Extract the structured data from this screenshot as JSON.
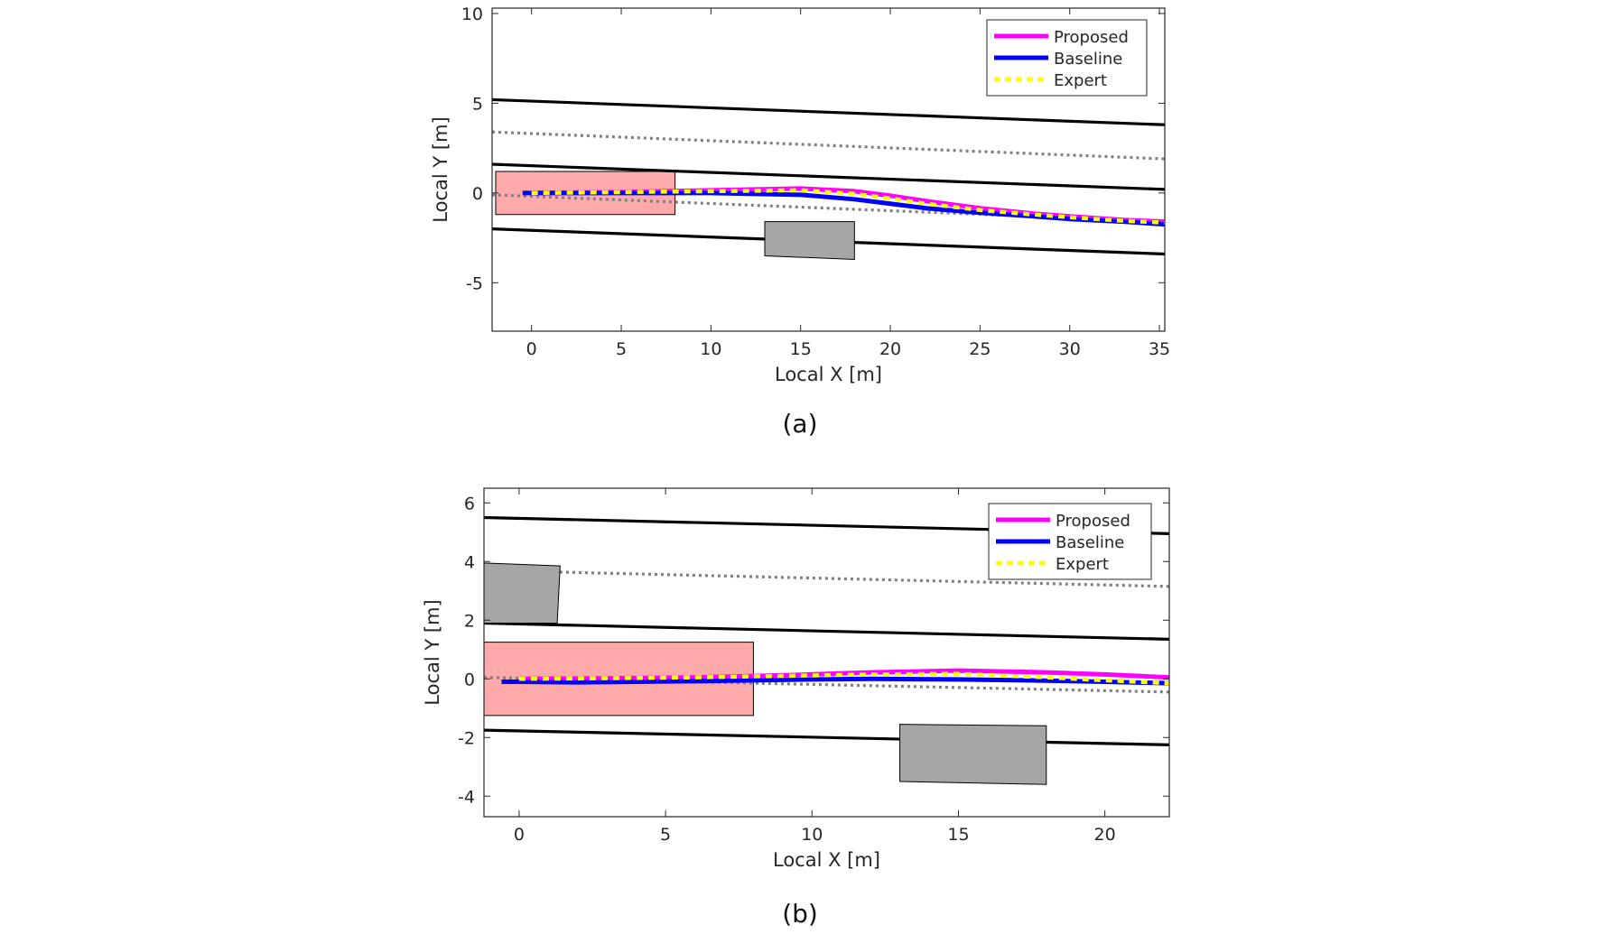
{
  "chart_data": [
    {
      "type": "line",
      "caption": "(a)",
      "xlabel": "Local X [m]",
      "ylabel": "Local Y [m]",
      "xlim": [
        -2.2,
        35.3
      ],
      "ylim": [
        -7.7,
        10.3
      ],
      "xticks": [
        0,
        5,
        10,
        15,
        20,
        25,
        30,
        35
      ],
      "yticks": [
        -5,
        0,
        5,
        10
      ],
      "grid": false,
      "legend_position": "top-right",
      "legend": [
        {
          "label": "Proposed",
          "color": "#ff00ff",
          "style": "solid"
        },
        {
          "label": "Baseline",
          "color": "#0000ff",
          "style": "solid"
        },
        {
          "label": "Expert",
          "color": "#ffff00",
          "style": "dotted"
        }
      ],
      "lane_lines": [
        {
          "kind": "boundary",
          "x": [
            -2.2,
            35.3
          ],
          "y": [
            5.2,
            3.8
          ]
        },
        {
          "kind": "center",
          "x": [
            -2.2,
            35.3
          ],
          "y": [
            3.4,
            1.9
          ]
        },
        {
          "kind": "boundary",
          "x": [
            -2.2,
            35.3
          ],
          "y": [
            1.6,
            0.2
          ]
        },
        {
          "kind": "center",
          "x": [
            -2.2,
            35.3
          ],
          "y": [
            -0.1,
            -1.6
          ]
        },
        {
          "kind": "boundary",
          "x": [
            -2.2,
            35.3
          ],
          "y": [
            -2.0,
            -3.4
          ]
        }
      ],
      "ego_box": {
        "x": [
          -2.0,
          8.0
        ],
        "y": [
          -1.2,
          1.2
        ],
        "color": "#ffaaaa"
      },
      "obstacles": [
        {
          "corners": [
            [
              13.0,
              -1.6
            ],
            [
              18.0,
              -1.6
            ],
            [
              18.0,
              -3.7
            ],
            [
              13.0,
              -3.5
            ]
          ],
          "color": "#a6a6a6"
        }
      ],
      "series": [
        {
          "name": "Proposed",
          "color": "#ff00ff",
          "x": [
            0,
            5,
            10,
            15,
            18,
            20,
            22,
            25,
            28,
            30,
            33,
            35.3
          ],
          "y": [
            0.0,
            0.05,
            0.15,
            0.25,
            0.1,
            -0.15,
            -0.45,
            -0.85,
            -1.15,
            -1.3,
            -1.5,
            -1.6
          ]
        },
        {
          "name": "Baseline",
          "color": "#0000ff",
          "x": [
            -0.5,
            0,
            5,
            10,
            15,
            18,
            20,
            22,
            25,
            28,
            30,
            33,
            35.3
          ],
          "y": [
            0.0,
            0.0,
            0.0,
            0.0,
            -0.1,
            -0.35,
            -0.6,
            -0.85,
            -1.1,
            -1.3,
            -1.45,
            -1.6,
            -1.75
          ]
        },
        {
          "name": "Expert",
          "color": "#ffff00",
          "x": [
            0,
            5,
            10,
            15,
            18,
            20,
            22,
            25,
            28,
            30,
            33,
            35.3
          ],
          "y": [
            0.0,
            0.05,
            0.1,
            0.15,
            -0.05,
            -0.3,
            -0.6,
            -0.95,
            -1.2,
            -1.35,
            -1.55,
            -1.65
          ]
        }
      ]
    },
    {
      "type": "line",
      "caption": "(b)",
      "xlabel": "Local X [m]",
      "ylabel": "Local Y [m]",
      "xlim": [
        -1.2,
        22.2
      ],
      "ylim": [
        -4.7,
        6.5
      ],
      "xticks": [
        0,
        5,
        10,
        15,
        20
      ],
      "yticks": [
        -4,
        -2,
        0,
        2,
        4,
        6
      ],
      "grid": false,
      "legend_position": "top-right",
      "legend": [
        {
          "label": "Proposed",
          "color": "#ff00ff",
          "style": "solid"
        },
        {
          "label": "Baseline",
          "color": "#0000ff",
          "style": "solid"
        },
        {
          "label": "Expert",
          "color": "#ffff00",
          "style": "dotted"
        }
      ],
      "lane_lines": [
        {
          "kind": "boundary",
          "x": [
            -1.2,
            22.2
          ],
          "y": [
            5.5,
            4.95
          ]
        },
        {
          "kind": "center",
          "x": [
            -1.2,
            22.2
          ],
          "y": [
            3.7,
            3.15
          ]
        },
        {
          "kind": "boundary",
          "x": [
            -1.2,
            22.2
          ],
          "y": [
            1.9,
            1.35
          ]
        },
        {
          "kind": "center",
          "x": [
            -1.2,
            22.2
          ],
          "y": [
            0.05,
            -0.45
          ]
        },
        {
          "kind": "boundary",
          "x": [
            -1.2,
            22.2
          ],
          "y": [
            -1.75,
            -2.25
          ]
        }
      ],
      "ego_box": {
        "x": [
          -1.2,
          8.0
        ],
        "y": [
          -1.25,
          1.25
        ],
        "color": "#ffaaaa"
      },
      "obstacles": [
        {
          "corners": [
            [
              -1.2,
              3.95
            ],
            [
              1.4,
              3.85
            ],
            [
              1.3,
              1.9
            ],
            [
              -1.2,
              1.9
            ]
          ],
          "color": "#a6a6a6"
        },
        {
          "corners": [
            [
              13.0,
              -1.55
            ],
            [
              18.0,
              -1.6
            ],
            [
              18.0,
              -3.6
            ],
            [
              13.0,
              -3.5
            ]
          ],
          "color": "#a6a6a6"
        }
      ],
      "series": [
        {
          "name": "Proposed",
          "color": "#ff00ff",
          "x": [
            0,
            3,
            6,
            9,
            12,
            15,
            18,
            20,
            22.2
          ],
          "y": [
            0.0,
            0.02,
            0.05,
            0.12,
            0.22,
            0.28,
            0.22,
            0.15,
            0.05
          ]
        },
        {
          "name": "Baseline",
          "color": "#0000ff",
          "x": [
            -0.6,
            0,
            2,
            4,
            6,
            8,
            10,
            12,
            15,
            18,
            20,
            22.2
          ],
          "y": [
            -0.1,
            -0.1,
            -0.12,
            -0.1,
            -0.08,
            -0.05,
            -0.02,
            0.0,
            -0.02,
            -0.06,
            -0.1,
            -0.15
          ]
        },
        {
          "name": "Expert",
          "color": "#ffff00",
          "x": [
            0,
            3,
            6,
            9,
            12,
            15,
            18,
            20,
            22.2
          ],
          "y": [
            0.0,
            0.02,
            0.05,
            0.1,
            0.15,
            0.17,
            0.05,
            -0.05,
            -0.15
          ]
        }
      ]
    }
  ]
}
